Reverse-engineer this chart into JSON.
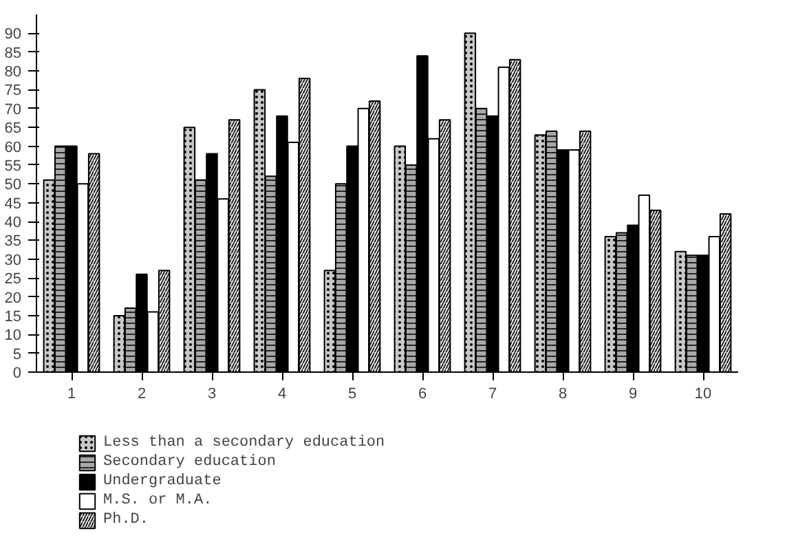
{
  "chart_data": {
    "type": "bar",
    "categories": [
      "1",
      "2",
      "3",
      "4",
      "5",
      "6",
      "7",
      "8",
      "9",
      "10"
    ],
    "series": [
      {
        "name": "Less than a secondary education",
        "color": "#c8c8c8",
        "values": [
          51,
          15,
          65,
          75,
          27,
          60,
          90,
          63,
          36,
          32
        ]
      },
      {
        "name": "Secondary education",
        "color": "#a8a8a8",
        "values": [
          60,
          17,
          51,
          52,
          50,
          55,
          70,
          64,
          37,
          31
        ]
      },
      {
        "name": "Undergraduate",
        "color": "#000000",
        "values": [
          60,
          26,
          58,
          68,
          60,
          84,
          68,
          59,
          39,
          31
        ]
      },
      {
        "name": "M.S. or M.A.",
        "color": "#ffffff",
        "values": [
          50,
          16,
          46,
          61,
          70,
          62,
          81,
          59,
          47,
          36
        ]
      },
      {
        "name": "Ph.D.",
        "color": "#e0e0e0",
        "values": [
          58,
          27,
          67,
          78,
          72,
          67,
          83,
          64,
          43,
          42
        ]
      }
    ],
    "ylim": [
      0,
      95
    ],
    "yticks": [
      0,
      5,
      10,
      15,
      20,
      25,
      30,
      35,
      40,
      45,
      50,
      55,
      60,
      65,
      70,
      75,
      80,
      85,
      90
    ],
    "grid": false,
    "legend": "bottom"
  }
}
